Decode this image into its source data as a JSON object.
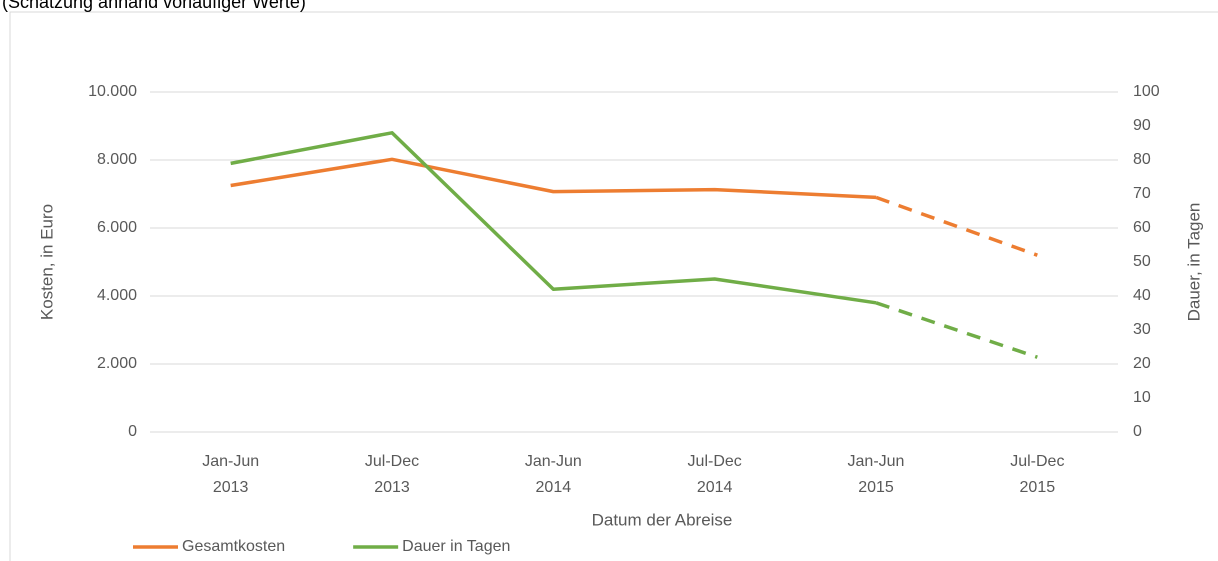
{
  "chart_data": {
    "type": "line",
    "subtitle": "(Schätzung anhand vorläufiger Werte)",
    "xlabel": "Datum der Abreise",
    "ylabel": "Kosten, in Euro",
    "y2label": "Dauer, in Tagen",
    "categories": [
      [
        "Jan-Jun",
        "2013"
      ],
      [
        "Jul-Dec",
        "2013"
      ],
      [
        "Jan-Jun",
        "2014"
      ],
      [
        "Jul-Dec",
        "2014"
      ],
      [
        "Jan-Jun",
        "2015"
      ],
      [
        "Jul-Dec",
        "2015"
      ]
    ],
    "series": [
      {
        "name": "Gesamtkosten",
        "color": "#ed7d31",
        "values": [
          7250,
          8020,
          7070,
          7130,
          6900,
          5200
        ],
        "dashed_from": 4
      },
      {
        "name": "Dauer in Tagen",
        "color": "#70ad47",
        "values": [
          79,
          88,
          42,
          45,
          38,
          22
        ],
        "axis": "y2",
        "dashed_from": 4
      }
    ],
    "ylim": [
      0,
      10000
    ],
    "yticks": [
      0,
      {
        "value": 2000,
        "label": "2.000"
      },
      {
        "value": 4000,
        "label": "4.000"
      },
      {
        "value": 6000,
        "label": "6.000"
      },
      {
        "value": 8000,
        "label": "8.000"
      },
      {
        "value": 10000,
        "label": "10.000"
      }
    ],
    "y2lim": [
      0,
      100
    ],
    "y2ticks": [
      0,
      10,
      20,
      30,
      40,
      50,
      60,
      70,
      80,
      90,
      100
    ],
    "grid": true,
    "legend": "bottom-left"
  }
}
